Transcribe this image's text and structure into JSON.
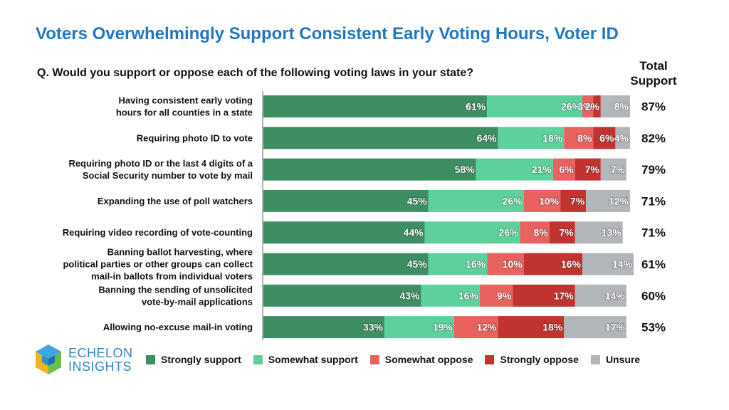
{
  "title": "Voters Overwhelmingly Support Consistent Early Voting Hours, Voter ID",
  "question": "Q. Would you support or oppose each of the following voting laws in your state?",
  "total_header": [
    "Total",
    "Support"
  ],
  "brand": {
    "line1": "ECHELON",
    "line2": "INSIGHTS"
  },
  "colors": {
    "title": "#1f78c1",
    "strongly_support": "#3d8f63",
    "somewhat_support": "#5dd19c",
    "somewhat_oppose": "#e8625f",
    "strongly_oppose": "#c0332f",
    "unsure": "#b2b6bb"
  },
  "chart_data": {
    "type": "bar",
    "orientation": "horizontal",
    "stacked": true,
    "xlim": [
      0,
      100
    ],
    "categories": [
      [
        "Having consistent early voting",
        "hours for all counties in a state"
      ],
      [
        "Requiring photo ID to vote"
      ],
      [
        "Requiring photo ID or the last 4 digits of a",
        "Social Security number to vote by mail"
      ],
      [
        "Expanding the use of poll watchers"
      ],
      [
        "Requiring video recording of vote-counting"
      ],
      [
        "Banning ballot harvesting, where",
        "political parties or other groups can collect",
        "mail-in ballots from individual voters"
      ],
      [
        "Banning the sending of unsolicited",
        "vote-by-mail applications"
      ],
      [
        "Allowing no-excuse mail-in voting"
      ]
    ],
    "series": [
      {
        "name": "Strongly support",
        "color": "#3d8f63",
        "values": [
          61,
          64,
          58,
          45,
          44,
          45,
          43,
          33
        ]
      },
      {
        "name": "Somewhat support",
        "color": "#5dd19c",
        "values": [
          26,
          18,
          21,
          26,
          26,
          16,
          16,
          19
        ]
      },
      {
        "name": "Somewhat oppose",
        "color": "#e8625f",
        "values": [
          3,
          8,
          6,
          10,
          8,
          10,
          9,
          12
        ]
      },
      {
        "name": "Strongly oppose",
        "color": "#c0332f",
        "values": [
          2,
          6,
          7,
          7,
          7,
          16,
          17,
          18
        ]
      },
      {
        "name": "Unsure",
        "color": "#b2b6bb",
        "values": [
          8,
          4,
          7,
          12,
          13,
          14,
          14,
          17
        ]
      }
    ],
    "total_support": [
      "87%",
      "82%",
      "79%",
      "71%",
      "71%",
      "61%",
      "60%",
      "53%"
    ],
    "legend": [
      "Strongly support",
      "Somewhat support",
      "Somewhat oppose",
      "Strongly oppose",
      "Unsure"
    ],
    "legend_position": "bottom",
    "grid": false
  }
}
